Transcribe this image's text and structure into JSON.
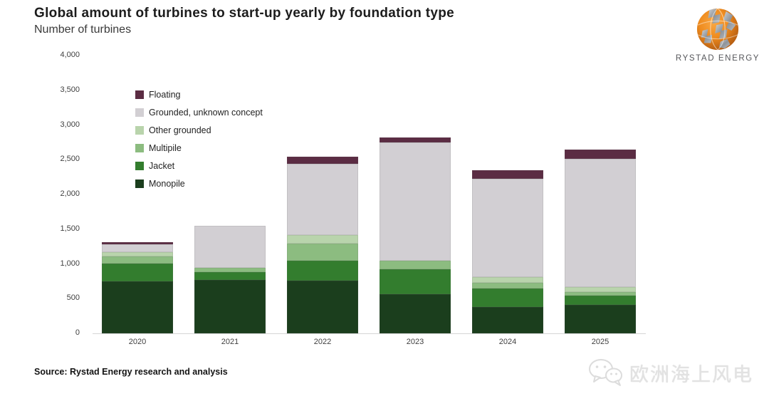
{
  "header": {
    "title": "Global amount of turbines to start-up yearly by foundation type",
    "subtitle": "Number of turbines"
  },
  "logo": {
    "company": "RYSTAD ENERGY",
    "icon": "globe-icon"
  },
  "chart_data": {
    "type": "bar",
    "stacked": true,
    "title": "Global amount of turbines to start-up yearly by foundation type",
    "ylabel": "Number of turbines",
    "xlabel": "",
    "grid": false,
    "legend_position": "upper-left",
    "categories": [
      "2020",
      "2021",
      "2022",
      "2023",
      "2024",
      "2025"
    ],
    "series": [
      {
        "name": "Monopile",
        "color": "#1b3e1d",
        "values": [
          750,
          765,
          755,
          565,
          380,
          415
        ]
      },
      {
        "name": "Jacket",
        "color": "#337d2e",
        "values": [
          255,
          120,
          295,
          355,
          270,
          125
        ]
      },
      {
        "name": "Multipile",
        "color": "#8cbc80",
        "values": [
          105,
          60,
          245,
          125,
          80,
          60
        ]
      },
      {
        "name": "Other grounded",
        "color": "#b9d4ac",
        "values": [
          60,
          0,
          120,
          0,
          80,
          65
        ]
      },
      {
        "name": "Grounded, unknown concept",
        "color": "#d2cfd3",
        "values": [
          110,
          600,
          1025,
          1700,
          1415,
          1845
        ]
      },
      {
        "name": "Floating",
        "color": "#5b2c43",
        "values": [
          30,
          0,
          100,
          80,
          125,
          140
        ]
      }
    ],
    "totals": [
      1310,
      1545,
      2540,
      2825,
      2350,
      2650
    ],
    "legend_order": [
      "Floating",
      "Grounded, unknown concept",
      "Other grounded",
      "Multipile",
      "Jacket",
      "Monopile"
    ],
    "y_axis": {
      "min": 0,
      "max": 4000,
      "step": 500,
      "tick_labels": [
        "0",
        "500",
        "1,000",
        "1,500",
        "2,000",
        "2,500",
        "3,000",
        "3,500",
        "4,000"
      ]
    }
  },
  "footer": {
    "source": "Source: Rystad Energy research and analysis"
  },
  "watermark": {
    "text": "欧洲海上风电",
    "icon": "wechat-icon"
  }
}
